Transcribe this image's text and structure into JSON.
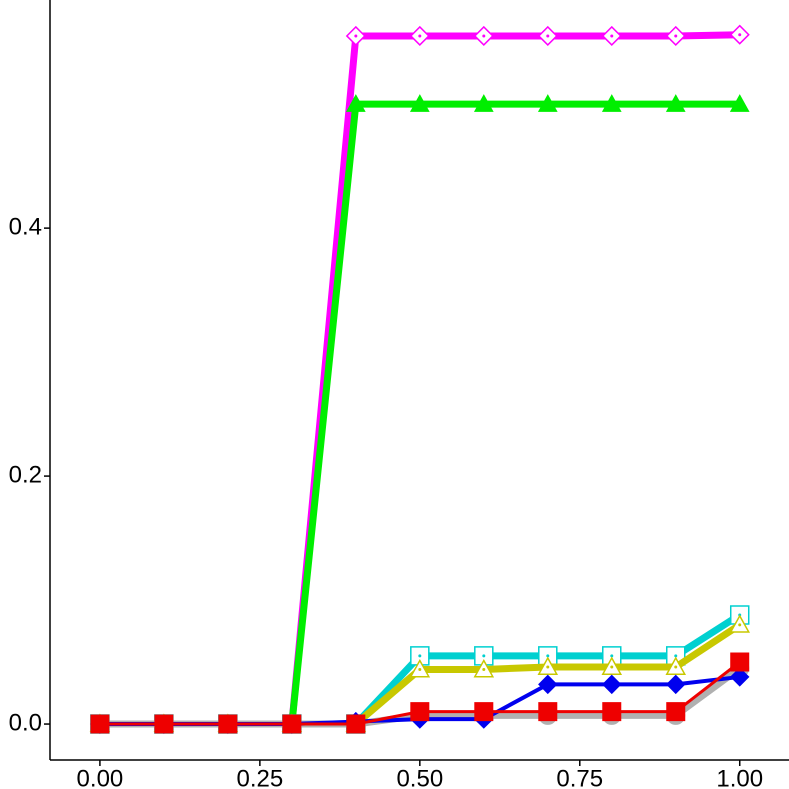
{
  "chart_data": {
    "type": "line",
    "x": [
      0,
      0.1,
      0.2,
      0.3,
      0.4,
      0.5,
      0.6,
      0.7,
      0.8,
      0.9,
      1.0
    ],
    "xlim": [
      -0.078,
      1.077
    ],
    "ylim": [
      -0.029,
      0.584
    ],
    "xticks": [
      {
        "value": 0,
        "label": "0.00"
      },
      {
        "value": 0.25,
        "label": "0.25"
      },
      {
        "value": 0.5,
        "label": "0.50"
      },
      {
        "value": 0.75,
        "label": "0.75"
      },
      {
        "value": 1.0,
        "label": "1.00"
      }
    ],
    "yticks": [
      {
        "value": 0,
        "label": "0.0"
      },
      {
        "value": 0.2,
        "label": "0.2"
      },
      {
        "value": 0.4,
        "label": "0.4"
      }
    ],
    "series": [
      {
        "color": "#ff00ff",
        "marker": "diamond-open",
        "values": [
          0,
          0,
          0,
          0,
          0.555,
          0.555,
          0.555,
          0.555,
          0.555,
          0.555,
          0.556
        ]
      },
      {
        "color": "#00ee00",
        "marker": "triangle",
        "values": [
          0,
          0,
          0,
          0,
          0.5,
          0.5,
          0.5,
          0.5,
          0.5,
          0.5,
          0.5
        ]
      },
      {
        "color": "#00d0d0",
        "marker": "square-open",
        "values": [
          0,
          0,
          0,
          0,
          0,
          0.055,
          0.055,
          0.055,
          0.055,
          0.055,
          0.088
        ]
      },
      {
        "color": "#c8c800",
        "marker": "triangle-open",
        "values": [
          0,
          0,
          0,
          0,
          0,
          0.044,
          0.044,
          0.046,
          0.046,
          0.046,
          0.08
        ]
      },
      {
        "color": "#b0b0b0",
        "marker": "circle",
        "values": [
          0,
          0,
          0,
          0,
          0,
          0.007,
          0.007,
          0.007,
          0.007,
          0.007,
          0.045
        ]
      },
      {
        "color": "#0000ee",
        "marker": "diamond",
        "values": [
          0,
          0,
          0,
          0,
          0.002,
          0.004,
          0.004,
          0.032,
          0.032,
          0.032,
          0.038
        ]
      },
      {
        "color": "#ee0000",
        "marker": "square",
        "values": [
          0,
          0,
          0,
          0,
          0,
          0.01,
          0.01,
          0.01,
          0.01,
          0.01,
          0.05
        ]
      }
    ]
  }
}
